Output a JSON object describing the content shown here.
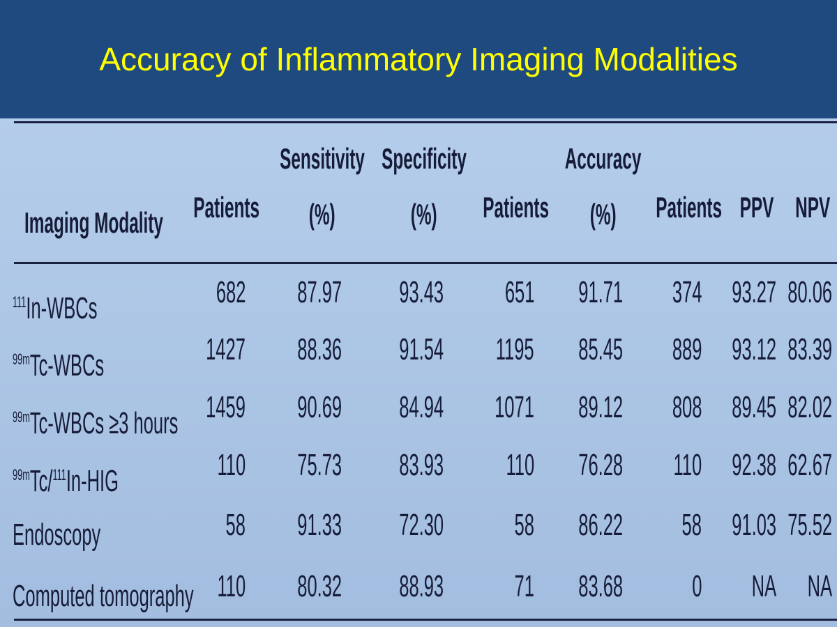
{
  "header": {
    "title": "Accuracy of Inflammatory Imaging Modalities"
  },
  "table": {
    "columns": [
      [
        "Imaging Modality"
      ],
      [
        "Patients"
      ],
      [
        "Sensitivity",
        "(%)"
      ],
      [
        "Specificity",
        "(%)"
      ],
      [
        "Patients"
      ],
      [
        "Accuracy",
        "(%)"
      ],
      [
        "Patients"
      ],
      [
        "PPV"
      ],
      [
        "NPV"
      ]
    ],
    "rows": [
      [
        [
          {
            "sup": "111"
          },
          {
            "text": "In-WBCs"
          }
        ],
        "682",
        "87.97",
        "93.43",
        "651",
        "91.71",
        "374",
        "93.27",
        "80.06"
      ],
      [
        [
          {
            "sup": "99m"
          },
          {
            "text": "Tc-WBCs"
          }
        ],
        "1427",
        "88.36",
        "91.54",
        "1195",
        "85.45",
        "889",
        "93.12",
        "83.39"
      ],
      [
        [
          {
            "sup": "99m"
          },
          {
            "text": "Tc-WBCs ≥3 hours"
          }
        ],
        "1459",
        "90.69",
        "84.94",
        "1071",
        "89.12",
        "808",
        "89.45",
        "82.02"
      ],
      [
        [
          {
            "sup": "99m"
          },
          {
            "text": "Tc/"
          },
          {
            "sup": "111"
          },
          {
            "text": "In-HIG"
          }
        ],
        "110",
        "75.73",
        "83.93",
        "110",
        "76.28",
        "110",
        "92.38",
        "62.67"
      ],
      [
        [
          {
            "text": "Endoscopy"
          }
        ],
        "58",
        "91.33",
        "72.30",
        "58",
        "86.22",
        "58",
        "91.03",
        "75.52"
      ],
      [
        [
          {
            "text": "Computed tomography"
          }
        ],
        "110",
        "80.32",
        "88.93",
        "71",
        "83.68",
        "0",
        "NA",
        "NA"
      ]
    ]
  }
}
